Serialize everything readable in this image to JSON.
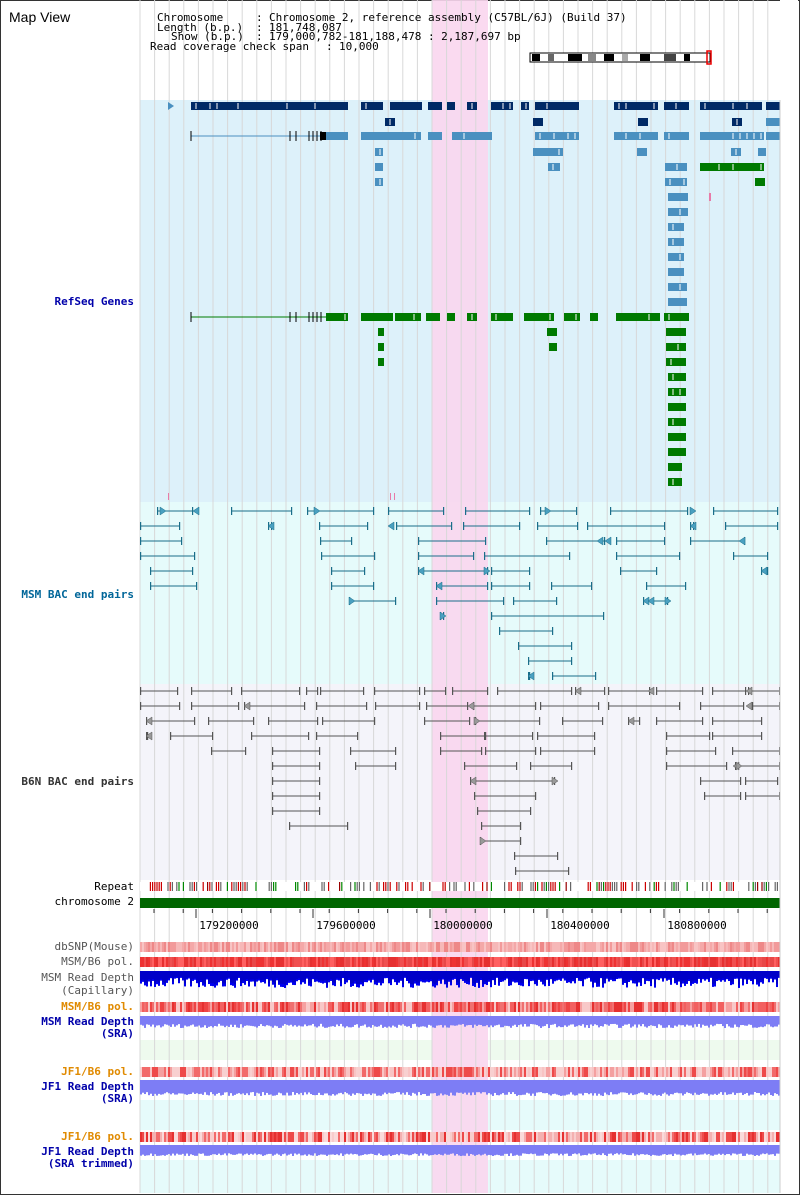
{
  "title": "Map View",
  "info": {
    "chromosome_label": "Chromosome",
    "chromosome_value": "Chromosome 2, reference assembly (C57BL/6J) (Build 37)",
    "length_label": "Length (b.p.)",
    "length_value": "181,748,087",
    "show_label": "Show (b.p.)",
    "show_value": "179,000,782-181,188,478 : 2,187,697 bp",
    "coverage_label": "Read coverage check span",
    "coverage_value": "10,000"
  },
  "tracks": {
    "refseq": "RefSeq Genes",
    "msm_bac": "MSM BAC end pairs",
    "b6n_bac": "B6N BAC end pairs",
    "repeat": "Repeat",
    "chromosome": "chromosome 2",
    "dbsnp": "dbSNP(Mouse)",
    "msm_b6_pol_1": "MSM/B6 pol.",
    "msm_depth_cap": "MSM Read Depth",
    "msm_depth_cap_sub": "(Capillary)",
    "msm_b6_pol_2": "MSM/B6 pol.",
    "msm_depth_sra": "MSM Read Depth",
    "msm_depth_sra_sub": "(SRA)",
    "jf1_b6_pol_1": "JF1/B6 pol.",
    "jf1_depth_sra": "JF1 Read Depth",
    "jf1_depth_sra_sub": "(SRA)",
    "jf1_b6_pol_2": "JF1/B6 pol.",
    "jf1_depth_trim": "JF1 Read Depth",
    "jf1_depth_trim_sub": "(SRA trimmed)"
  },
  "axis_ticks": [
    "179200000",
    "179600000",
    "180000000",
    "180400000",
    "180800000"
  ],
  "colors": {
    "refseq_bg": "#ddf1fa",
    "msm_bg": "#e6fbfb",
    "b6n_bg": "#f4f4fa",
    "highlight": "#f9d6ee",
    "dark_blue": "#002a66",
    "mid_blue": "#4a90c0",
    "green": "#007a00",
    "msm_label": "#006699",
    "b6n_label": "#333333",
    "blue_label": "#0000aa",
    "orange_label": "#e08a00",
    "chromosome_bar": "#006600",
    "depth_cap": "#0000ee",
    "depth_sra": "#7d7df5"
  }
}
